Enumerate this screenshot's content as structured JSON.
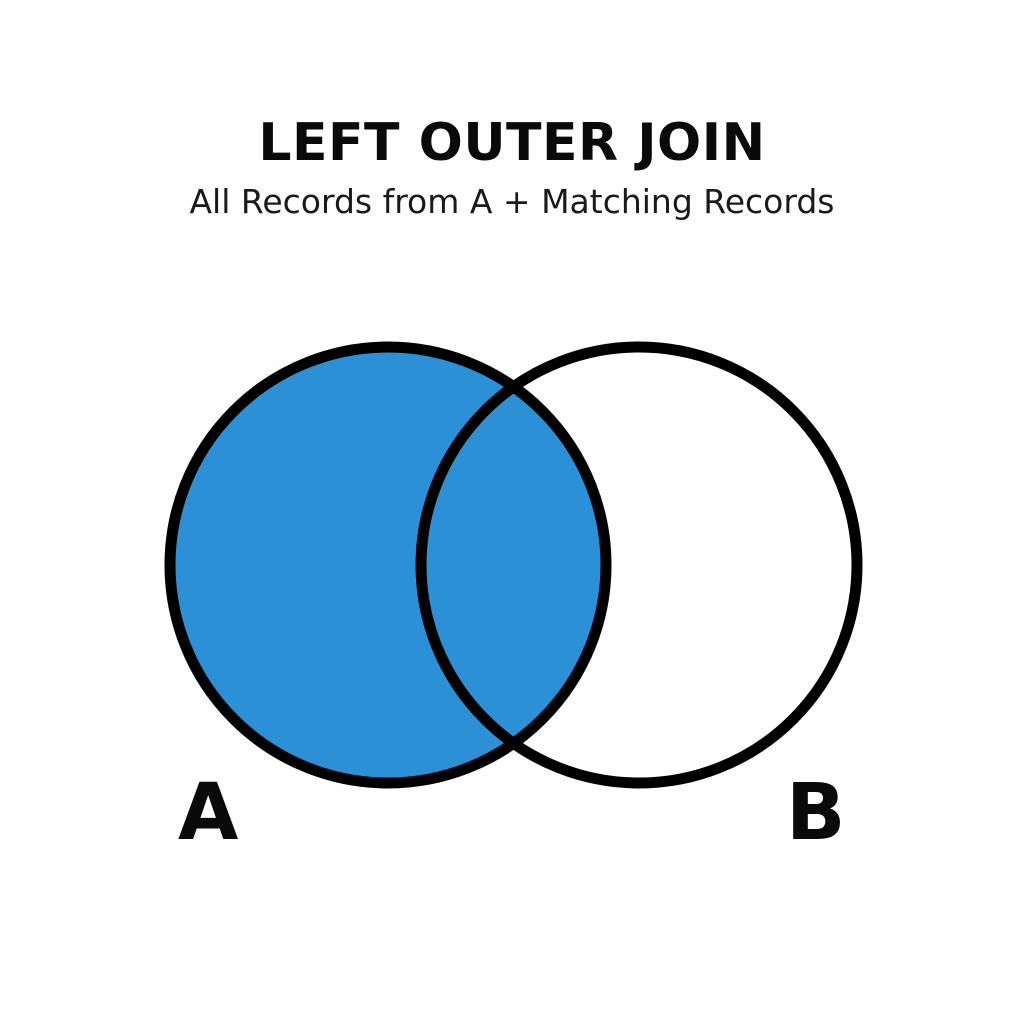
{
  "diagram": {
    "title": "LEFT OUTER JOIN",
    "subtitle": "All Records from A + Matching Records",
    "sets": [
      {
        "name": "A",
        "highlighted": true
      },
      {
        "name": "B",
        "highlighted": false
      }
    ],
    "intersection_highlighted": true
  },
  "colors": {
    "highlight_fill": "#2b90d5",
    "outline": "#000000",
    "background": "#ffffff"
  }
}
